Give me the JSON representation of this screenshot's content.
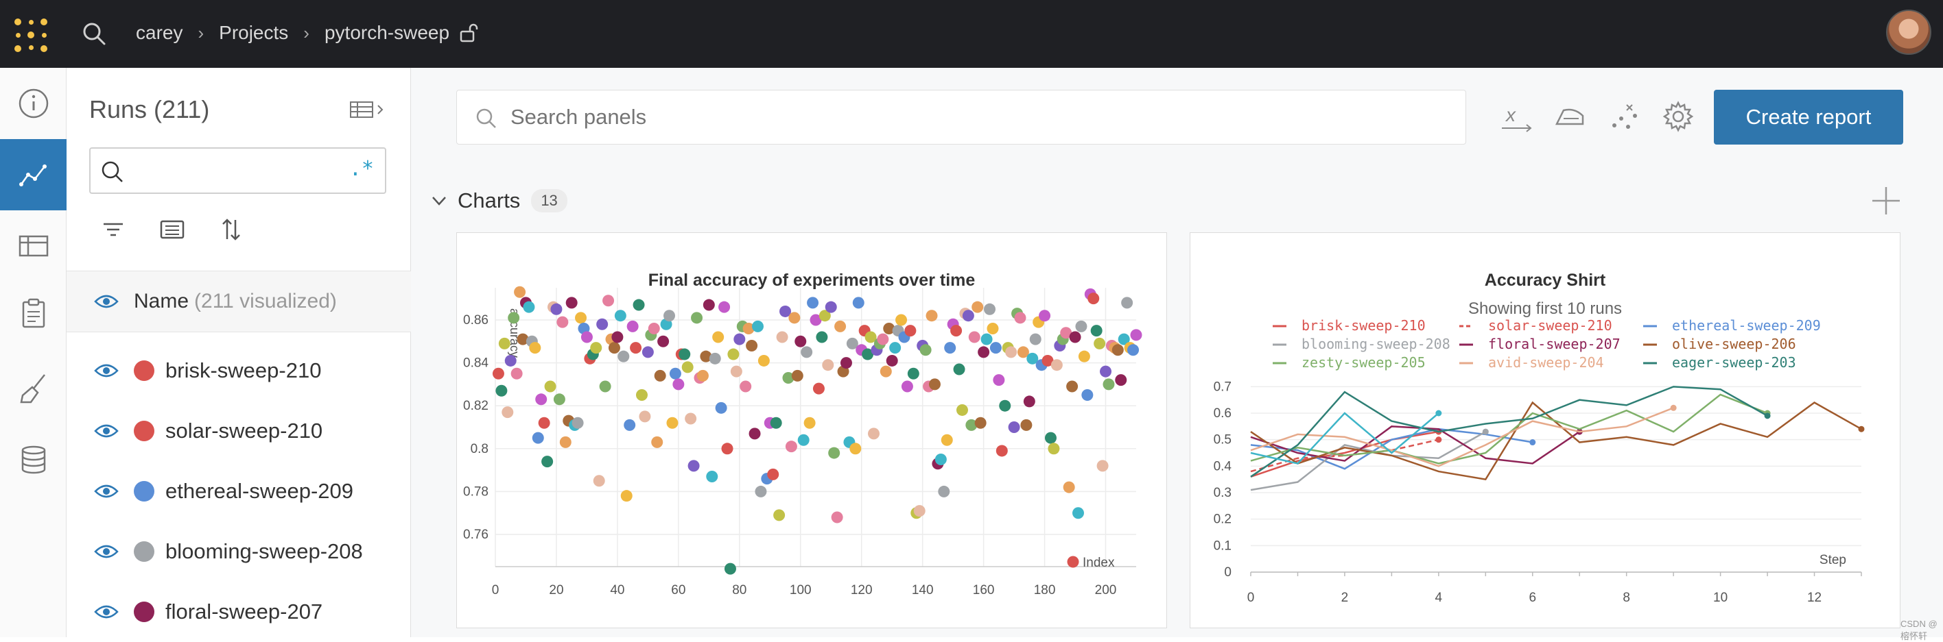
{
  "breadcrumb": {
    "user": "carey",
    "projects": "Projects",
    "project": "pytorch-sweep"
  },
  "runs": {
    "title": "Runs (211)",
    "search_value": "",
    "regex_label": ".*",
    "name_header": "Name",
    "visualized": "(211 visualized)",
    "items": [
      {
        "label": "brisk-sweep-210",
        "color": "#d9534f"
      },
      {
        "label": "solar-sweep-210",
        "color": "#d9534f"
      },
      {
        "label": "ethereal-sweep-209",
        "color": "#5b8ed6"
      },
      {
        "label": "blooming-sweep-208",
        "color": "#a0a4a8"
      },
      {
        "label": "floral-sweep-207",
        "color": "#8e2356"
      }
    ]
  },
  "main": {
    "search_placeholder": "Search panels",
    "create_report": "Create report",
    "section_title": "Charts",
    "section_count": "13"
  },
  "charts": {
    "scatter_title": "Final accuracy of experiments over time",
    "scatter_ylabel": "accuracy",
    "scatter_xlabel": "Index",
    "line_title": "Accuracy Shirt",
    "line_subtitle": "Showing first 10 runs",
    "line_xlabel": "Step"
  },
  "chart_data": [
    {
      "type": "scatter",
      "title": "Final accuracy of experiments over time",
      "xlabel": "Index",
      "ylabel": "accuracy",
      "xlim": [
        0,
        210
      ],
      "ylim": [
        0.745,
        0.875
      ],
      "xticks": [
        0,
        20,
        40,
        60,
        80,
        100,
        120,
        140,
        160,
        180,
        200
      ],
      "yticks": [
        0.76,
        0.78,
        0.8,
        0.82,
        0.84,
        0.86
      ],
      "grid": true,
      "points": [
        [
          1,
          0.835
        ],
        [
          2,
          0.827
        ],
        [
          3,
          0.849
        ],
        [
          4,
          0.817
        ],
        [
          5,
          0.841
        ],
        [
          6,
          0.861
        ],
        [
          7,
          0.835
        ],
        [
          8,
          0.873
        ],
        [
          9,
          0.851
        ],
        [
          10,
          0.868
        ],
        [
          11,
          0.866
        ],
        [
          12,
          0.85
        ],
        [
          13,
          0.847
        ],
        [
          14,
          0.805
        ],
        [
          15,
          0.823
        ],
        [
          16,
          0.812
        ],
        [
          17,
          0.794
        ],
        [
          18,
          0.829
        ],
        [
          19,
          0.866
        ],
        [
          20,
          0.865
        ],
        [
          21,
          0.823
        ],
        [
          22,
          0.859
        ],
        [
          23,
          0.803
        ],
        [
          24,
          0.813
        ],
        [
          25,
          0.868
        ],
        [
          26,
          0.811
        ],
        [
          27,
          0.812
        ],
        [
          28,
          0.861
        ],
        [
          29,
          0.856
        ],
        [
          30,
          0.852
        ],
        [
          31,
          0.842
        ],
        [
          32,
          0.844
        ],
        [
          33,
          0.847
        ],
        [
          34,
          0.785
        ],
        [
          35,
          0.858
        ],
        [
          36,
          0.829
        ],
        [
          37,
          0.869
        ],
        [
          38,
          0.851
        ],
        [
          39,
          0.847
        ],
        [
          40,
          0.852
        ],
        [
          41,
          0.862
        ],
        [
          42,
          0.843
        ],
        [
          43,
          0.778
        ],
        [
          44,
          0.811
        ],
        [
          45,
          0.857
        ],
        [
          46,
          0.847
        ],
        [
          47,
          0.867
        ],
        [
          48,
          0.825
        ],
        [
          49,
          0.815
        ],
        [
          50,
          0.845
        ],
        [
          51,
          0.853
        ],
        [
          52,
          0.856
        ],
        [
          53,
          0.803
        ],
        [
          54,
          0.834
        ],
        [
          55,
          0.85
        ],
        [
          56,
          0.858
        ],
        [
          57,
          0.862
        ],
        [
          58,
          0.812
        ],
        [
          59,
          0.835
        ],
        [
          60,
          0.83
        ],
        [
          61,
          0.844
        ],
        [
          62,
          0.844
        ],
        [
          63,
          0.838
        ],
        [
          64,
          0.814
        ],
        [
          65,
          0.792
        ],
        [
          66,
          0.861
        ],
        [
          67,
          0.833
        ],
        [
          68,
          0.834
        ],
        [
          69,
          0.843
        ],
        [
          70,
          0.867
        ],
        [
          71,
          0.787
        ],
        [
          72,
          0.842
        ],
        [
          73,
          0.852
        ],
        [
          74,
          0.819
        ],
        [
          75,
          0.866
        ],
        [
          76,
          0.8
        ],
        [
          77,
          0.744
        ],
        [
          78,
          0.844
        ],
        [
          79,
          0.836
        ],
        [
          80,
          0.851
        ],
        [
          81,
          0.857
        ],
        [
          82,
          0.829
        ],
        [
          83,
          0.856
        ],
        [
          84,
          0.848
        ],
        [
          85,
          0.807
        ],
        [
          86,
          0.857
        ],
        [
          87,
          0.78
        ],
        [
          88,
          0.841
        ],
        [
          89,
          0.786
        ],
        [
          90,
          0.812
        ],
        [
          91,
          0.788
        ],
        [
          92,
          0.812
        ],
        [
          93,
          0.769
        ],
        [
          94,
          0.852
        ],
        [
          95,
          0.864
        ],
        [
          96,
          0.833
        ],
        [
          97,
          0.801
        ],
        [
          98,
          0.861
        ],
        [
          99,
          0.834
        ],
        [
          100,
          0.85
        ],
        [
          101,
          0.804
        ],
        [
          102,
          0.845
        ],
        [
          103,
          0.812
        ],
        [
          104,
          0.868
        ],
        [
          105,
          0.86
        ],
        [
          106,
          0.828
        ],
        [
          107,
          0.852
        ],
        [
          108,
          0.862
        ],
        [
          109,
          0.839
        ],
        [
          110,
          0.866
        ],
        [
          111,
          0.798
        ],
        [
          112,
          0.768
        ],
        [
          113,
          0.857
        ],
        [
          114,
          0.836
        ],
        [
          115,
          0.84
        ],
        [
          116,
          0.803
        ],
        [
          117,
          0.849
        ],
        [
          118,
          0.8
        ],
        [
          119,
          0.868
        ],
        [
          120,
          0.846
        ],
        [
          121,
          0.855
        ],
        [
          122,
          0.844
        ],
        [
          123,
          0.852
        ],
        [
          124,
          0.807
        ],
        [
          125,
          0.846
        ],
        [
          126,
          0.849
        ],
        [
          127,
          0.851
        ],
        [
          128,
          0.836
        ],
        [
          129,
          0.856
        ],
        [
          130,
          0.841
        ],
        [
          131,
          0.847
        ],
        [
          132,
          0.855
        ],
        [
          133,
          0.86
        ],
        [
          134,
          0.852
        ],
        [
          135,
          0.829
        ],
        [
          136,
          0.855
        ],
        [
          137,
          0.835
        ],
        [
          138,
          0.77
        ],
        [
          139,
          0.771
        ],
        [
          140,
          0.848
        ],
        [
          141,
          0.846
        ],
        [
          142,
          0.829
        ],
        [
          143,
          0.862
        ],
        [
          144,
          0.83
        ],
        [
          145,
          0.793
        ],
        [
          146,
          0.795
        ],
        [
          147,
          0.78
        ],
        [
          148,
          0.804
        ],
        [
          149,
          0.847
        ],
        [
          150,
          0.858
        ],
        [
          151,
          0.855
        ],
        [
          152,
          0.837
        ],
        [
          153,
          0.818
        ],
        [
          154,
          0.863
        ],
        [
          155,
          0.862
        ],
        [
          156,
          0.811
        ],
        [
          157,
          0.852
        ],
        [
          158,
          0.866
        ],
        [
          159,
          0.812
        ],
        [
          160,
          0.845
        ],
        [
          161,
          0.851
        ],
        [
          162,
          0.865
        ],
        [
          163,
          0.856
        ],
        [
          164,
          0.847
        ],
        [
          165,
          0.832
        ],
        [
          166,
          0.799
        ],
        [
          167,
          0.82
        ],
        [
          168,
          0.847
        ],
        [
          169,
          0.845
        ],
        [
          170,
          0.81
        ],
        [
          171,
          0.863
        ],
        [
          172,
          0.861
        ],
        [
          173,
          0.845
        ],
        [
          174,
          0.811
        ],
        [
          175,
          0.822
        ],
        [
          176,
          0.842
        ],
        [
          177,
          0.851
        ],
        [
          178,
          0.859
        ],
        [
          179,
          0.839
        ],
        [
          180,
          0.862
        ],
        [
          181,
          0.841
        ],
        [
          182,
          0.805
        ],
        [
          183,
          0.8
        ],
        [
          184,
          0.839
        ],
        [
          185,
          0.848
        ],
        [
          186,
          0.851
        ],
        [
          187,
          0.854
        ],
        [
          188,
          0.782
        ],
        [
          189,
          0.829
        ],
        [
          190,
          0.852
        ],
        [
          191,
          0.77
        ],
        [
          192,
          0.857
        ],
        [
          193,
          0.843
        ],
        [
          194,
          0.825
        ],
        [
          195,
          0.872
        ],
        [
          196,
          0.87
        ],
        [
          197,
          0.855
        ],
        [
          198,
          0.849
        ],
        [
          199,
          0.792
        ],
        [
          200,
          0.836
        ],
        [
          201,
          0.83
        ],
        [
          202,
          0.848
        ],
        [
          203,
          0.847
        ],
        [
          204,
          0.846
        ],
        [
          205,
          0.832
        ],
        [
          206,
          0.851
        ],
        [
          207,
          0.868
        ],
        [
          208,
          0.847
        ],
        [
          209,
          0.846
        ],
        [
          210,
          0.853
        ]
      ],
      "palette": [
        "#d9534f",
        "#5b8ed6",
        "#a0a4a8",
        "#8e2356",
        "#e8a05a",
        "#7fb069",
        "#e6b8a2",
        "#2e8b6e",
        "#c35ac9",
        "#f0b840",
        "#3eb5c8",
        "#a66b3a",
        "#e57f9e",
        "#7c5fc4",
        "#c1c147"
      ]
    },
    {
      "type": "line",
      "title": "Accuracy Shirt",
      "subtitle": "Showing first 10 runs",
      "xlabel": "Step",
      "xlim": [
        0,
        13
      ],
      "ylim": [
        0,
        0.75
      ],
      "xticks": [
        0,
        2,
        4,
        6,
        8,
        10,
        12
      ],
      "yticks": [
        0,
        0.1,
        0.2,
        0.3,
        0.4,
        0.5,
        0.6,
        0.7
      ],
      "legend_placement": "top",
      "series": [
        {
          "name": "brisk-sweep-210",
          "color": "#d9534f",
          "dash": false,
          "x": [
            0,
            1,
            2,
            3,
            4
          ],
          "y": [
            0.36,
            0.42,
            0.45,
            0.5,
            0.53
          ]
        },
        {
          "name": "solar-sweep-210",
          "color": "#d9534f",
          "dash": true,
          "x": [
            0,
            1,
            2,
            3,
            4
          ],
          "y": [
            0.38,
            0.43,
            0.44,
            0.46,
            0.5
          ]
        },
        {
          "name": "ethereal-sweep-209",
          "color": "#5b8ed6",
          "dash": false,
          "x": [
            0,
            1,
            2,
            3,
            4,
            5,
            6
          ],
          "y": [
            0.48,
            0.46,
            0.39,
            0.5,
            0.54,
            0.52,
            0.49
          ]
        },
        {
          "name": "blooming-sweep-208",
          "color": "#a0a4a8",
          "dash": false,
          "x": [
            0,
            1,
            2,
            3,
            4,
            5
          ],
          "y": [
            0.31,
            0.34,
            0.48,
            0.44,
            0.43,
            0.53
          ]
        },
        {
          "name": "floral-sweep-207",
          "color": "#8e2356",
          "dash": false,
          "x": [
            0,
            1,
            2,
            3,
            4,
            5,
            6,
            7
          ],
          "y": [
            0.51,
            0.45,
            0.42,
            0.55,
            0.54,
            0.43,
            0.41,
            0.53
          ]
        },
        {
          "name": "olive-sweep-206",
          "color": "#a05a2c",
          "dash": false,
          "x": [
            0,
            1,
            2,
            3,
            4,
            5,
            6,
            7,
            8,
            9,
            10,
            11,
            12,
            13
          ],
          "y": [
            0.53,
            0.41,
            0.47,
            0.44,
            0.38,
            0.35,
            0.64,
            0.49,
            0.51,
            0.48,
            0.56,
            0.51,
            0.64,
            0.54
          ]
        },
        {
          "name": "zesty-sweep-205",
          "color": "#7fb069",
          "dash": false,
          "x": [
            0,
            1,
            2,
            3,
            4,
            5,
            6,
            7,
            8,
            9,
            10,
            11
          ],
          "y": [
            0.42,
            0.47,
            0.44,
            0.46,
            0.41,
            0.45,
            0.6,
            0.54,
            0.61,
            0.53,
            0.67,
            0.6
          ]
        },
        {
          "name": "avid-sweep-204",
          "color": "#e6a98a",
          "dash": false,
          "x": [
            0,
            1,
            2,
            3,
            4,
            5,
            6,
            7,
            8,
            9
          ],
          "y": [
            0.46,
            0.52,
            0.51,
            0.46,
            0.4,
            0.48,
            0.57,
            0.53,
            0.55,
            0.62
          ]
        },
        {
          "name": "eager-sweep-203",
          "color": "#2e7f75",
          "dash": false,
          "x": [
            0,
            1,
            2,
            3,
            4,
            5,
            6,
            7,
            8,
            9,
            10,
            11
          ],
          "y": [
            0.36,
            0.48,
            0.68,
            0.57,
            0.53,
            0.56,
            0.58,
            0.65,
            0.63,
            0.7,
            0.69,
            0.59
          ]
        },
        {
          "name": "",
          "color": "#3eb5c8",
          "dash": false,
          "x": [
            0,
            1,
            2,
            3,
            4
          ],
          "y": [
            0.45,
            0.41,
            0.6,
            0.45,
            0.6
          ]
        }
      ]
    }
  ]
}
